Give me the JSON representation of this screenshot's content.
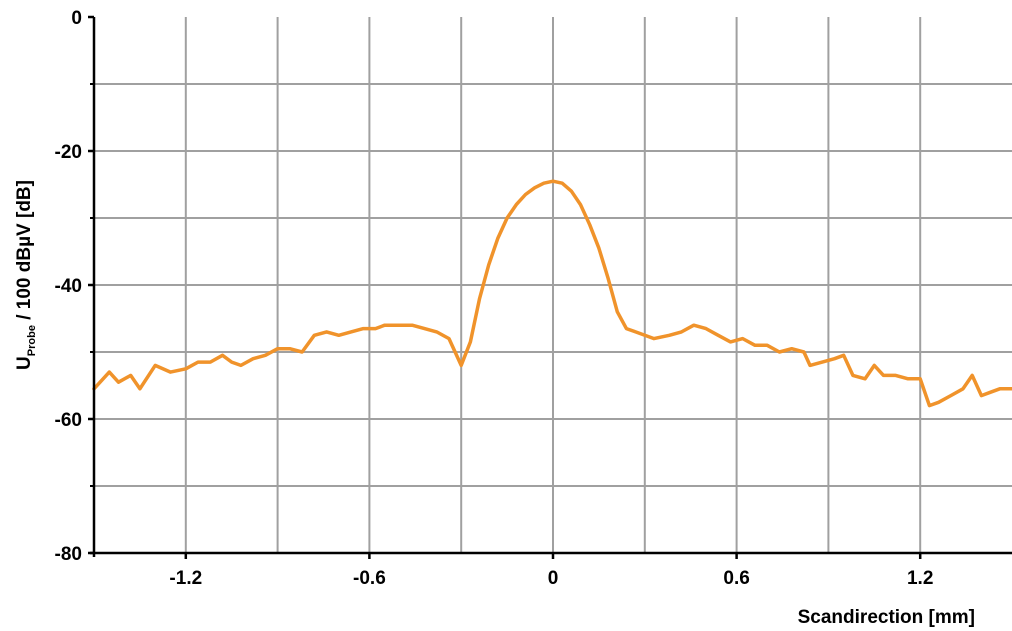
{
  "chart_data": {
    "type": "line",
    "xlabel": "Scandirection [mm]",
    "ylabel": {
      "main": "U",
      "subscript": "Probe",
      "rest": " / 100 dBµV [dB]"
    },
    "xlim": [
      -1.5,
      1.5
    ],
    "ylim": [
      -80,
      0
    ],
    "grid": true,
    "x_ticks": [
      -1.2,
      -0.6,
      0,
      0.6,
      1.2
    ],
    "x_tick_labels": [
      "-1.2",
      "-0.6",
      "0",
      "0.6",
      "1.2"
    ],
    "y_ticks": [
      0,
      -20,
      -40,
      -60,
      -80
    ],
    "y_tick_labels": [
      "0",
      "-20",
      "-40",
      "-60",
      "-80"
    ],
    "colors": {
      "line": "#f0932b",
      "grid": "#a0a0a0",
      "axis": "#000000"
    },
    "series": [
      {
        "x": [
          -1.5,
          -1.45,
          -1.42,
          -1.38,
          -1.35,
          -1.3,
          -1.25,
          -1.2,
          -1.16,
          -1.12,
          -1.08,
          -1.05,
          -1.02,
          -0.98,
          -0.94,
          -0.9,
          -0.86,
          -0.82,
          -0.78,
          -0.74,
          -0.7,
          -0.66,
          -0.62,
          -0.58,
          -0.55,
          -0.5,
          -0.46,
          -0.42,
          -0.38,
          -0.34,
          -0.3,
          -0.27,
          -0.24,
          -0.21,
          -0.18,
          -0.15,
          -0.12,
          -0.09,
          -0.06,
          -0.03,
          0.0,
          0.03,
          0.06,
          0.09,
          0.12,
          0.15,
          0.18,
          0.21,
          0.24,
          0.27,
          0.33,
          0.38,
          0.42,
          0.46,
          0.5,
          0.54,
          0.58,
          0.62,
          0.66,
          0.7,
          0.74,
          0.78,
          0.82,
          0.84,
          0.88,
          0.92,
          0.95,
          0.98,
          1.02,
          1.05,
          1.08,
          1.12,
          1.16,
          1.2,
          1.23,
          1.26,
          1.3,
          1.34,
          1.37,
          1.4,
          1.43,
          1.46,
          1.5
        ],
        "y": [
          -55.5,
          -53.0,
          -54.5,
          -53.5,
          -55.5,
          -52.0,
          -53.0,
          -52.5,
          -51.5,
          -51.5,
          -50.5,
          -51.5,
          -52.0,
          -51.0,
          -50.5,
          -49.5,
          -49.5,
          -50.0,
          -47.5,
          -47.0,
          -47.5,
          -47.0,
          -46.5,
          -46.5,
          -46.0,
          -46.0,
          -46.0,
          -46.5,
          -47.0,
          -48.0,
          -52.0,
          -48.5,
          -42.0,
          -37.0,
          -33.0,
          -30.0,
          -28.0,
          -26.5,
          -25.5,
          -24.8,
          -24.5,
          -24.8,
          -26.0,
          -28.0,
          -31.0,
          -34.5,
          -39.0,
          -44.0,
          -46.5,
          -47.0,
          -48.0,
          -47.5,
          -47.0,
          -46.0,
          -46.5,
          -47.5,
          -48.5,
          -48.0,
          -49.0,
          -49.0,
          -50.0,
          -49.5,
          -50.0,
          -52.0,
          -51.5,
          -51.0,
          -50.5,
          -53.5,
          -54.0,
          -52.0,
          -53.5,
          -53.5,
          -54.0,
          -54.0,
          -58.0,
          -57.5,
          -56.5,
          -55.5,
          -53.5,
          -56.5,
          -56.0,
          -55.5,
          -55.5
        ]
      }
    ]
  }
}
